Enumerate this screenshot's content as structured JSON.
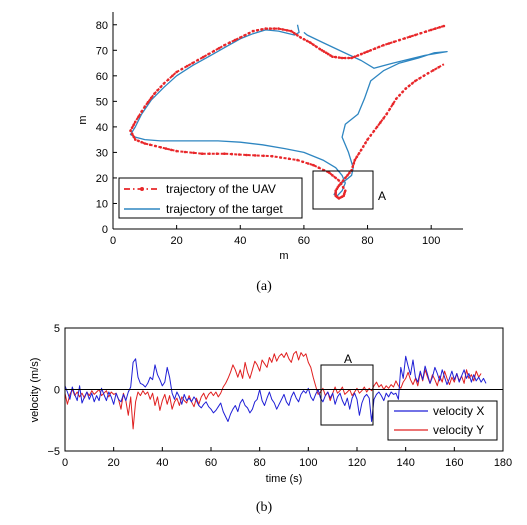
{
  "chart_data": [
    {
      "type": "line",
      "caption": "(a)",
      "xlabel": "m",
      "ylabel": "m",
      "xlim": [
        0,
        110
      ],
      "ylim": [
        0,
        85
      ],
      "xticks": [
        "0",
        "20",
        "40",
        "60",
        "80",
        "100"
      ],
      "yticks": [
        "0",
        "10",
        "20",
        "30",
        "40",
        "50",
        "60",
        "70",
        "80"
      ],
      "grid": false,
      "legend_position": "bottom-left",
      "annotation_label": "A",
      "annotation_box": {
        "x": [
          63,
          81
        ],
        "y": [
          8,
          24
        ]
      },
      "series": [
        {
          "name": "trajectory of the UAV",
          "color": "#e8272a",
          "style": "dash-dot with point markers",
          "points": [
            [
              104,
              79.5
            ],
            [
              100,
              78
            ],
            [
              95,
              76
            ],
            [
              90,
              74
            ],
            [
              85,
              72
            ],
            [
              81,
              70
            ],
            [
              78,
              68.5
            ],
            [
              75,
              67
            ],
            [
              72,
              67
            ],
            [
              69,
              67.5
            ],
            [
              67,
              69
            ],
            [
              65,
              70.5
            ],
            [
              62,
              73
            ],
            [
              59,
              75
            ],
            [
              56,
              77.5
            ],
            [
              52,
              78.5
            ],
            [
              48,
              78.5
            ],
            [
              44,
              77.5
            ],
            [
              40,
              75
            ],
            [
              35,
              72
            ],
            [
              30,
              68.5
            ],
            [
              25,
              65
            ],
            [
              20,
              61.5
            ],
            [
              16,
              57
            ],
            [
              13,
              53
            ],
            [
              10,
              48
            ],
            [
              7,
              42
            ],
            [
              5.5,
              38.5
            ],
            [
              7,
              35
            ],
            [
              10,
              33.5
            ],
            [
              15,
              32
            ],
            [
              20,
              30.5
            ],
            [
              28,
              29.5
            ],
            [
              35,
              29.5
            ],
            [
              42,
              29
            ],
            [
              50,
              28.5
            ],
            [
              58,
              27
            ],
            [
              63,
              25
            ],
            [
              68,
              22
            ],
            [
              71,
              19
            ],
            [
              73,
              15
            ],
            [
              72.5,
              13
            ],
            [
              71,
              12
            ],
            [
              70,
              13
            ],
            [
              70,
              15
            ],
            [
              71,
              17
            ],
            [
              73,
              20
            ],
            [
              75,
              23
            ],
            [
              76,
              27
            ],
            [
              78,
              31
            ],
            [
              80,
              35
            ],
            [
              83,
              40
            ],
            [
              86,
              45
            ],
            [
              89,
              51
            ],
            [
              92,
              55
            ],
            [
              95,
              58
            ],
            [
              99,
              61
            ],
            [
              104,
              64.5
            ]
          ]
        },
        {
          "name": "trajectory of the target",
          "color": "#2e86c1",
          "style": "solid",
          "points": [
            [
              58,
              80
            ],
            [
              58.5,
              77
            ],
            [
              57,
              76
            ],
            [
              52,
              77.5
            ],
            [
              48,
              78
            ],
            [
              44,
              76.5
            ],
            [
              40,
              74.5
            ],
            [
              35,
              71
            ],
            [
              30,
              67.5
            ],
            [
              25,
              64
            ],
            [
              20,
              60
            ],
            [
              16,
              55.5
            ],
            [
              12,
              50.5
            ],
            [
              9,
              45
            ],
            [
              7,
              40
            ],
            [
              5.5,
              37
            ],
            [
              7,
              36
            ],
            [
              10,
              35
            ],
            [
              15,
              34.5
            ],
            [
              25,
              34.5
            ],
            [
              33,
              34.5
            ],
            [
              40,
              34
            ],
            [
              47,
              33
            ],
            [
              54,
              31.5
            ],
            [
              60,
              30
            ],
            [
              66,
              27
            ],
            [
              70,
              24
            ],
            [
              72,
              21
            ],
            [
              73,
              18
            ],
            [
              72,
              15
            ],
            [
              70.5,
              13
            ],
            [
              69.5,
              13.5
            ],
            [
              70.5,
              16
            ],
            [
              72,
              18
            ],
            [
              73.5,
              19.5
            ],
            [
              75,
              21
            ],
            [
              75.5,
              24
            ],
            [
              74,
              30
            ],
            [
              72,
              36
            ],
            [
              73,
              41
            ],
            [
              77,
              45
            ],
            [
              79,
              51
            ],
            [
              81,
              58
            ],
            [
              85,
              62
            ],
            [
              90,
              65
            ],
            [
              96,
              67
            ],
            [
              101,
              69
            ],
            [
              105,
              69.5
            ],
            [
              98,
              68
            ],
            [
              88,
              65
            ],
            [
              82,
              63
            ],
            [
              78,
              66
            ],
            [
              72,
              69.5
            ],
            [
              66,
              73
            ],
            [
              61,
              76
            ],
            [
              60,
              77
            ]
          ]
        }
      ]
    },
    {
      "type": "line",
      "caption": "(b)",
      "xlabel": "time (s)",
      "ylabel": "velocity (m/s)",
      "xlim": [
        0,
        180
      ],
      "ylim": [
        -5,
        5
      ],
      "xticks": [
        "0",
        "20",
        "40",
        "60",
        "80",
        "100",
        "120",
        "140",
        "160",
        "180"
      ],
      "yticks": [
        "−5",
        "0",
        "5"
      ],
      "grid": false,
      "zero_line": true,
      "legend_position": "bottom-right",
      "annotation_label": "A",
      "annotation_box": {
        "x": [
          105,
          126
        ],
        "y": [
          -2.8,
          2
        ]
      },
      "series": [
        {
          "name": "velocity X",
          "color": "#1f1fd6",
          "values": [
            0.3,
            -0.2,
            -0.8,
            0.2,
            -0.4,
            -0.9,
            0.3,
            -1.1,
            -0.6,
            -0.2,
            -0.8,
            -0.3,
            -1.0,
            -0.5,
            -0.9,
            0.1,
            -0.4,
            -0.9,
            -0.2,
            -0.6,
            -1.2,
            -0.3,
            -0.8,
            -1.0,
            -0.4,
            -0.9,
            -0.2,
            0.2,
            2.2,
            2.5,
            1.0,
            0.5,
            0.4,
            0.2,
            0.5,
            1.0,
            0.8,
            2.0,
            1.2,
            0.8,
            0.3,
            0.6,
            1.8,
            1.0,
            -0.3,
            -0.8,
            -0.2,
            -0.6,
            -1.2,
            -0.4,
            -0.9,
            -0.7,
            -1.0,
            -0.6,
            -0.9,
            -1.3,
            -1.5,
            -1.2,
            -1.0,
            -1.4,
            -1.6,
            -1.9,
            -1.7,
            -1.4,
            -1.1,
            -1.8,
            -2.2,
            -2.6,
            -2.0,
            -1.6,
            -1.3,
            -1.8,
            -1.1,
            -0.8,
            -1.3,
            -1.5,
            -1.9,
            -1.6,
            -1.0,
            -0.8,
            0.0,
            -0.9,
            -1.3,
            -0.7,
            -0.2,
            -0.8,
            -1.1,
            -1.6,
            -1.2,
            -0.8,
            -0.4,
            -1.0,
            -1.3,
            -0.6,
            -0.2,
            -0.7,
            -1.0,
            -0.4,
            -0.1,
            -0.3,
            0.1,
            -0.6,
            -0.9,
            -0.4,
            0.0,
            -0.7,
            -1.0,
            -0.5,
            -0.2,
            -0.7,
            -0.3,
            -1.2,
            -0.6,
            -0.3,
            -0.9,
            -1.3,
            -0.7,
            -1.6,
            -0.7,
            -0.3,
            -0.8,
            -2.1,
            -1.1,
            -0.6,
            -0.4,
            -0.7,
            -2.6,
            -0.8,
            -0.4,
            -0.2,
            -0.5,
            -0.9,
            -0.3,
            -0.6,
            -0.2,
            -0.4,
            -0.3,
            -0.8,
            1.8,
            0.9,
            2.7,
            1.9,
            1.2,
            2.4,
            1.0,
            0.6,
            1.5,
            0.8,
            1.9,
            1.2,
            0.5,
            1.0,
            1.8,
            1.3,
            0.7,
            1.6,
            1.0,
            0.4,
            0.9,
            1.5,
            0.8,
            1.3,
            0.6,
            1.1,
            1.6,
            0.9,
            1.3,
            0.6,
            1.2,
            0.7,
            1.0,
            0.6,
            0.9,
            0.5
          ]
        },
        {
          "name": "velocity Y",
          "color": "#e02020",
          "values": [
            -0.3,
            -1.2,
            -0.4,
            0.0,
            -0.5,
            -0.2,
            -0.6,
            -0.3,
            -0.7,
            -0.2,
            -0.5,
            -0.1,
            -0.4,
            -0.2,
            0.0,
            -0.5,
            -0.3,
            -0.1,
            -0.6,
            -0.2,
            -0.4,
            -0.3,
            -0.8,
            -1.6,
            -0.3,
            -0.9,
            -2.1,
            -0.6,
            -3.2,
            -1.0,
            -0.2,
            -0.5,
            -0.1,
            -0.4,
            -0.2,
            -0.8,
            -0.3,
            -1.3,
            -0.6,
            -1.7,
            -0.9,
            -0.4,
            -1.2,
            -0.5,
            -1.6,
            -1.0,
            -0.7,
            -1.3,
            -0.6,
            -0.9,
            -1.1,
            -0.5,
            -1.0,
            -1.4,
            -0.7,
            -1.2,
            -0.6,
            -0.3,
            -0.8,
            -0.4,
            -0.2,
            -0.5,
            -0.2,
            -0.6,
            -0.3,
            0.2,
            0.5,
            0.9,
            1.4,
            2.0,
            1.6,
            1.0,
            1.6,
            0.9,
            2.2,
            1.4,
            0.9,
            1.6,
            2.3,
            2.0,
            1.5,
            2.4,
            2.1,
            1.8,
            2.6,
            2.2,
            2.9,
            2.3,
            2.7,
            2.9,
            2.6,
            3.0,
            2.5,
            2.2,
            2.9,
            3.1,
            2.4,
            3.0,
            2.7,
            2.9,
            2.2,
            1.8,
            1.0,
            0.3,
            -0.4,
            -0.2,
            0.1,
            -0.5,
            -0.2,
            -0.9,
            -0.3,
            0.2,
            -0.3,
            -0.1,
            0.2,
            -0.4,
            -0.2,
            0.0,
            -0.5,
            -0.2,
            0.1,
            -0.3,
            -0.1,
            0.2,
            -0.2,
            0.1,
            -0.1,
            0.3,
            0.6,
            0.2,
            0.4,
            0.0,
            0.3,
            0.1,
            0.4,
            0.2,
            0.7,
            0.3,
            0.1,
            0.6,
            0.9,
            1.4,
            0.8,
            0.4,
            0.9,
            0.3,
            1.4,
            0.7,
            1.6,
            1.0,
            0.5,
            1.2,
            0.8,
            0.3,
            1.1,
            0.6,
            1.5,
            0.9,
            0.4,
            1.0,
            0.6,
            1.3,
            0.7,
            1.1,
            0.5,
            1.6,
            0.9,
            1.2,
            0.7,
            1.5,
            1.0,
            1.3
          ]
        }
      ]
    }
  ]
}
